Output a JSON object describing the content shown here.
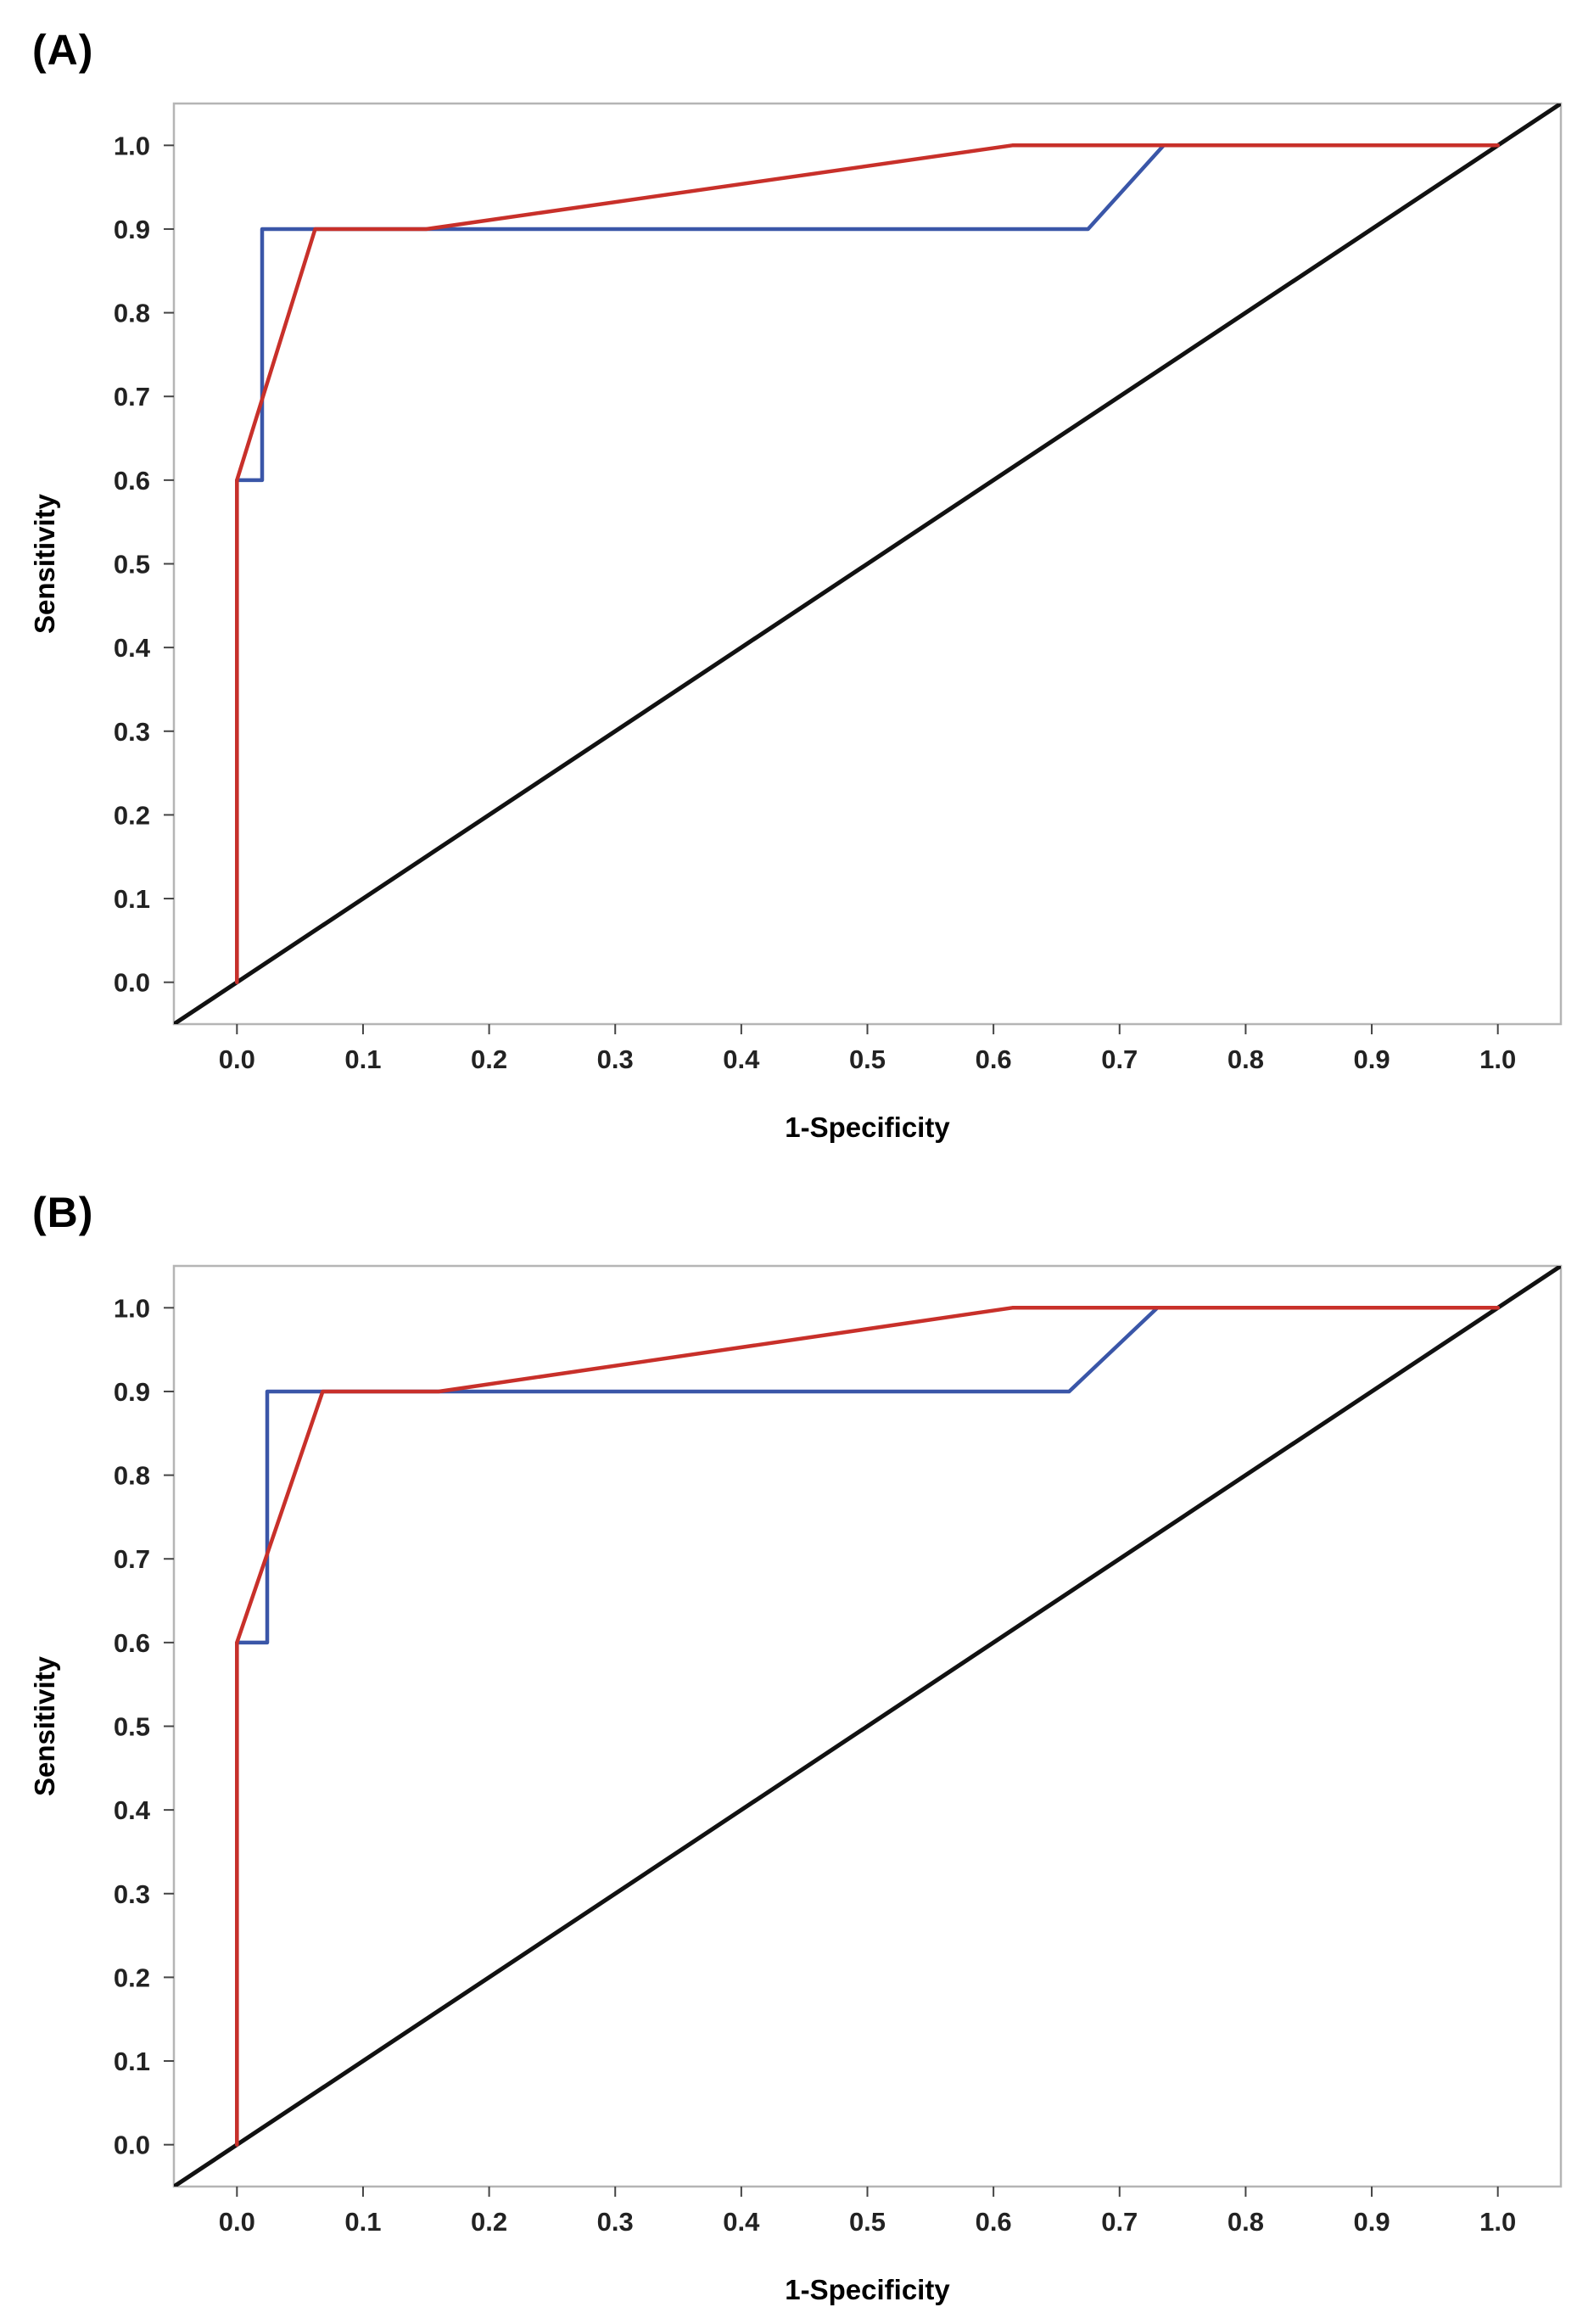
{
  "chart_data": [
    {
      "type": "line",
      "panel_label": "(A)",
      "xlabel": "1-Specificity",
      "ylabel": "Sensitivity",
      "xlim": [
        -0.05,
        1.05
      ],
      "ylim": [
        -0.05,
        1.05
      ],
      "xticks": [
        "0.0",
        "0.1",
        "0.2",
        "0.3",
        "0.4",
        "0.5",
        "0.6",
        "0.7",
        "0.8",
        "0.9",
        "1.0"
      ],
      "yticks": [
        "0.0",
        "0.1",
        "0.2",
        "0.3",
        "0.4",
        "0.5",
        "0.6",
        "0.7",
        "0.8",
        "0.9",
        "1.0"
      ],
      "series": [
        {
          "name": "reference",
          "color": "#111111",
          "x": [
            -0.05,
            1.05
          ],
          "y": [
            -0.05,
            1.05
          ]
        },
        {
          "name": "blue",
          "color": "#3a56a8",
          "x": [
            0,
            0,
            0.02,
            0.02,
            0.675,
            0.735,
            1.0
          ],
          "y": [
            0,
            0.6,
            0.6,
            0.9,
            0.9,
            1.0,
            1.0
          ]
        },
        {
          "name": "red",
          "color": "#c8302a",
          "x": [
            0,
            0,
            0.062,
            0.15,
            0.615,
            1.0
          ],
          "y": [
            0,
            0.6,
            0.9,
            0.9,
            1.0,
            1.0
          ]
        }
      ]
    },
    {
      "type": "line",
      "panel_label": "(B)",
      "xlabel": "1-Specificity",
      "ylabel": "Sensitivity",
      "xlim": [
        -0.05,
        1.05
      ],
      "ylim": [
        -0.05,
        1.05
      ],
      "xticks": [
        "0.0",
        "0.1",
        "0.2",
        "0.3",
        "0.4",
        "0.5",
        "0.6",
        "0.7",
        "0.8",
        "0.9",
        "1.0"
      ],
      "yticks": [
        "0.0",
        "0.1",
        "0.2",
        "0.3",
        "0.4",
        "0.5",
        "0.6",
        "0.7",
        "0.8",
        "0.9",
        "1.0"
      ],
      "series": [
        {
          "name": "reference",
          "color": "#111111",
          "x": [
            -0.05,
            1.05
          ],
          "y": [
            -0.05,
            1.05
          ]
        },
        {
          "name": "blue",
          "color": "#3a56a8",
          "x": [
            0,
            0,
            0.024,
            0.024,
            0.66,
            0.73,
            1.0
          ],
          "y": [
            0,
            0.6,
            0.6,
            0.9,
            0.9,
            1.0,
            1.0
          ]
        },
        {
          "name": "red",
          "color": "#c8302a",
          "x": [
            0,
            0,
            0.068,
            0.16,
            0.615,
            1.0
          ],
          "y": [
            0,
            0.6,
            0.9,
            0.9,
            1.0,
            1.0
          ]
        }
      ]
    }
  ]
}
